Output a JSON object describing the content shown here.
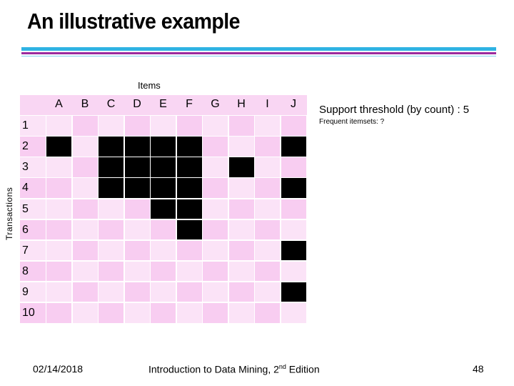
{
  "header": {
    "title": "An illustrative example"
  },
  "table": {
    "column_title": "Items",
    "row_title": "Transactions",
    "columns": [
      "A",
      "B",
      "C",
      "D",
      "E",
      "F",
      "G",
      "H",
      "I",
      "J"
    ],
    "row_labels": [
      "1",
      "2",
      "3",
      "4",
      "5",
      "6",
      "7",
      "8",
      "9",
      "10"
    ],
    "rows": [
      [
        0,
        0,
        0,
        0,
        0,
        0,
        0,
        0,
        0,
        0
      ],
      [
        1,
        0,
        1,
        1,
        1,
        1,
        0,
        0,
        0,
        1
      ],
      [
        0,
        0,
        1,
        1,
        1,
        1,
        0,
        1,
        0,
        0
      ],
      [
        0,
        0,
        1,
        1,
        1,
        1,
        0,
        0,
        0,
        1
      ],
      [
        0,
        0,
        0,
        0,
        1,
        1,
        0,
        0,
        0,
        0
      ],
      [
        0,
        0,
        0,
        0,
        0,
        1,
        0,
        0,
        0,
        0
      ],
      [
        0,
        0,
        0,
        0,
        0,
        0,
        0,
        0,
        0,
        1
      ],
      [
        0,
        0,
        0,
        0,
        0,
        0,
        0,
        0,
        0,
        0
      ],
      [
        0,
        0,
        0,
        0,
        0,
        0,
        0,
        0,
        0,
        1
      ],
      [
        0,
        0,
        0,
        0,
        0,
        0,
        0,
        0,
        0,
        0
      ]
    ]
  },
  "notes": {
    "support": "Support threshold (by count) : 5",
    "frequent": "Frequent itemsets: ?"
  },
  "footer": {
    "date": "02/14/2018",
    "source": {
      "text": "Introduction to Data Mining, 2",
      "sup": "nd",
      "tail": " Edition"
    },
    "page": "48"
  }
}
